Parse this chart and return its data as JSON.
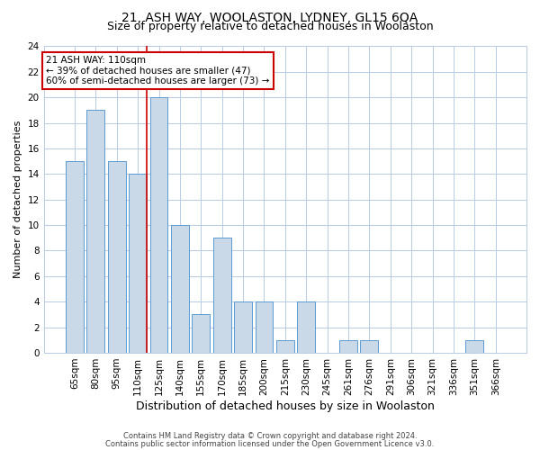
{
  "title": "21, ASH WAY, WOOLASTON, LYDNEY, GL15 6QA",
  "subtitle": "Size of property relative to detached houses in Woolaston",
  "xlabel": "Distribution of detached houses by size in Woolaston",
  "ylabel": "Number of detached properties",
  "categories": [
    "65sqm",
    "80sqm",
    "95sqm",
    "110sqm",
    "125sqm",
    "140sqm",
    "155sqm",
    "170sqm",
    "185sqm",
    "200sqm",
    "215sqm",
    "230sqm",
    "245sqm",
    "261sqm",
    "276sqm",
    "291sqm",
    "306sqm",
    "321sqm",
    "336sqm",
    "351sqm",
    "366sqm"
  ],
  "values": [
    15,
    19,
    15,
    14,
    20,
    10,
    3,
    9,
    4,
    4,
    1,
    4,
    0,
    1,
    1,
    0,
    0,
    0,
    0,
    1,
    0
  ],
  "bar_color": "#c9d9e8",
  "bar_edge_color": "#5b9bd5",
  "highlight_line_index": 3,
  "highlight_color": "#cc0000",
  "annotation_text": "21 ASH WAY: 110sqm\n← 39% of detached houses are smaller (47)\n60% of semi-detached houses are larger (73) →",
  "annotation_box_color": "#ffffff",
  "annotation_box_edge": "#cc0000",
  "ylim": [
    0,
    24
  ],
  "yticks": [
    0,
    2,
    4,
    6,
    8,
    10,
    12,
    14,
    16,
    18,
    20,
    22,
    24
  ],
  "footer1": "Contains HM Land Registry data © Crown copyright and database right 2024.",
  "footer2": "Contains public sector information licensed under the Open Government Licence v3.0.",
  "background_color": "#ffffff",
  "grid_color": "#b8cce4",
  "title_fontsize": 10,
  "subtitle_fontsize": 9,
  "xlabel_fontsize": 9,
  "ylabel_fontsize": 8,
  "tick_fontsize": 7.5,
  "annotation_fontsize": 7.5,
  "footer_fontsize": 6
}
